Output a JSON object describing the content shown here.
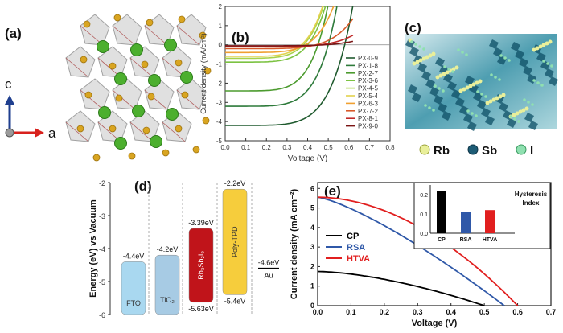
{
  "panels": {
    "a": {
      "label": "(a)",
      "axis_c": "c",
      "axis_a": "a"
    },
    "b": {
      "label": "(b)"
    },
    "c": {
      "label": "(c)",
      "legend": [
        "Rb",
        "Sb",
        "I"
      ]
    },
    "d": {
      "label": "(d)"
    },
    "e": {
      "label": "(e)"
    }
  },
  "colors": {
    "rb": "#4caf2e",
    "sb": "#9c9a9a",
    "i": "#d9a521",
    "fto": "#a9d8f0",
    "tio2": "#a7cbe4",
    "rbsbi": "#c0141a",
    "polytpd": "#f6cd3c",
    "cp": "#000000",
    "rsa": "#2f58a8",
    "htva": "#e11f1f"
  },
  "chart_data": [
    {
      "type": "line",
      "panel": "b",
      "xlabel": "Voltage (V)",
      "ylabel": "Current density (mA/cm²)",
      "xlim": [
        0.0,
        0.8
      ],
      "ylim": [
        -5,
        2
      ],
      "xticks": [
        "0.0",
        "0.1",
        "0.2",
        "0.3",
        "0.4",
        "0.5",
        "0.6",
        "0.7",
        "0.8"
      ],
      "yticks": [
        "-5",
        "-4",
        "-3",
        "-2",
        "-1",
        "0",
        "1",
        "2"
      ],
      "legend_position": "right",
      "series": [
        {
          "name": "PX-0-9",
          "color": "#1f5a2e",
          "jsc": -4.2,
          "voc": 0.58
        },
        {
          "name": "PX-1-8",
          "color": "#2d7a3a",
          "jsc": -3.2,
          "voc": 0.5
        },
        {
          "name": "PX-2-7",
          "color": "#4c9b2f",
          "jsc": -2.4,
          "voc": 0.45
        },
        {
          "name": "PX-3-6",
          "color": "#7cc242",
          "jsc": -0.9,
          "voc": 0.4
        },
        {
          "name": "PX-4-5",
          "color": "#a8d24a",
          "jsc": -0.7,
          "voc": 0.38
        },
        {
          "name": "PX-5-4",
          "color": "#e3d24e",
          "jsc": -0.6,
          "voc": 0.37
        },
        {
          "name": "PX-6-3",
          "color": "#f0a030",
          "jsc": -0.4,
          "voc": 0.39
        },
        {
          "name": "PX-7-2",
          "color": "#d85a2a",
          "jsc": -0.2,
          "voc": 0.44
        },
        {
          "name": "PX-8-1",
          "color": "#c02a2a",
          "jsc": -0.1,
          "voc": 0.46
        },
        {
          "name": "PX-9-0",
          "color": "#7a1414",
          "jsc": -0.05,
          "voc": 0.48
        }
      ]
    },
    {
      "type": "diagram",
      "panel": "d",
      "ylabel": "Energy (eV) vs Vacuum",
      "ylim": [
        -6,
        -2
      ],
      "yticks": [
        "-2",
        "-3",
        "-4",
        "-5",
        "-6"
      ],
      "levels": [
        {
          "name": "FTO",
          "top": -4.4,
          "bottom": -6.0,
          "top_label": "-4.4eV",
          "bottom_label": "",
          "color": "#a9d8f0"
        },
        {
          "name": "TiO₂",
          "top": -4.2,
          "bottom": -6.0,
          "top_label": "-4.2eV",
          "bottom_label": "",
          "color": "#a7cbe4"
        },
        {
          "name": "Rb₃Sb₂I₉",
          "top": -3.39,
          "bottom": -5.63,
          "top_label": "-3.39eV",
          "bottom_label": "-5.63eV",
          "color": "#c0141a"
        },
        {
          "name": "Poly-TPD",
          "top": -2.2,
          "bottom": -5.4,
          "top_label": "-2.2eV",
          "bottom_label": "-5.4eV",
          "color": "#f6cd3c"
        },
        {
          "name": "Au",
          "top": -4.6,
          "bottom": null,
          "top_label": "-4.6eV",
          "bottom_label": "",
          "color": "#000000"
        }
      ]
    },
    {
      "type": "line",
      "panel": "e",
      "xlabel": "Voltage (V)",
      "ylabel": "Current density (mA cm⁻²)",
      "xlim": [
        0.0,
        0.7
      ],
      "ylim": [
        0,
        6.3
      ],
      "xticks": [
        "0.0",
        "0.1",
        "0.2",
        "0.3",
        "0.4",
        "0.5",
        "0.6",
        "0.7"
      ],
      "yticks": [
        "0",
        "1",
        "2",
        "3",
        "4",
        "5",
        "6"
      ],
      "legend_position": "bottom-left",
      "series": [
        {
          "name": "CP",
          "color": "#000000",
          "jsc": 1.75,
          "voc": 0.5,
          "shape": 1.6
        },
        {
          "name": "RSA",
          "color": "#2f58a8",
          "jsc": 5.55,
          "voc": 0.56,
          "shape": 1.3
        },
        {
          "name": "HTVA",
          "color": "#e11f1f",
          "jsc": 5.55,
          "voc": 0.6,
          "shape": 1.9
        }
      ],
      "inset": {
        "type": "bar",
        "title": "Hysteresis Index",
        "categories": [
          "CP",
          "RSA",
          "HTVA"
        ],
        "values": [
          0.22,
          0.11,
          0.12
        ],
        "colors": [
          "#000000",
          "#2f58a8",
          "#e11f1f"
        ],
        "ylim": [
          0,
          0.25
        ],
        "yticks": [
          "0.0",
          "0.1",
          "0.2"
        ]
      }
    }
  ]
}
